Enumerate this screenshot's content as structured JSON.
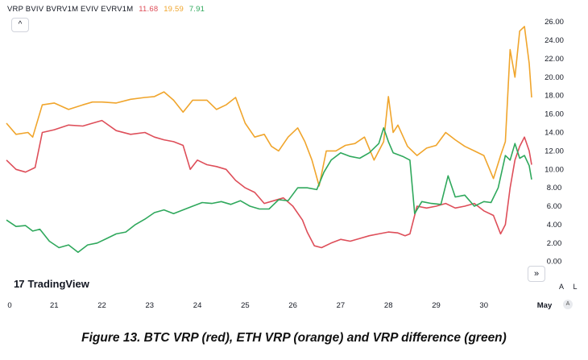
{
  "legend": {
    "labels": "VRP BVIV BVRV1M EVIV EVRV1M",
    "btc_value": "11.68",
    "eth_value": "19.59",
    "diff_value": "7.91"
  },
  "collapse_glyph": "^",
  "logo": {
    "mark": "17",
    "text": "TradingView"
  },
  "nav_glyph": "»",
  "scale_buttons": {
    "auto": "A",
    "log": "L"
  },
  "auto_badge": "A",
  "caption": "Figure 13. BTC VRP (red), ETH VRP (orange) and VRP difference (green)",
  "chart_data": {
    "type": "line",
    "title": "",
    "xlabel": "",
    "ylabel": "",
    "x_ticks": [
      "0",
      "21",
      "22",
      "23",
      "24",
      "25",
      "26",
      "27",
      "28",
      "29",
      "30",
      "May"
    ],
    "y_ticks": [
      "0.00",
      "2.00",
      "4.00",
      "6.00",
      "8.00",
      "10.00",
      "12.00",
      "14.00",
      "16.00",
      "18.00",
      "20.00",
      "22.00",
      "24.00",
      "26.00"
    ],
    "xlim": [
      20,
      31
    ],
    "ylim": [
      -0.9,
      27.5
    ],
    "grid": false,
    "series": [
      {
        "key": "eth",
        "color": "#f0a52c",
        "x": [
          20.0,
          20.2,
          20.45,
          20.55,
          20.75,
          21.0,
          21.3,
          21.6,
          21.8,
          22.0,
          22.3,
          22.6,
          22.9,
          23.1,
          23.3,
          23.5,
          23.7,
          23.9,
          24.2,
          24.4,
          24.6,
          24.8,
          25.0,
          25.2,
          25.4,
          25.55,
          25.7,
          25.9,
          26.1,
          26.25,
          26.4,
          26.55,
          26.7,
          26.9,
          27.1,
          27.3,
          27.5,
          27.7,
          27.9,
          28.0,
          28.1,
          28.2,
          28.4,
          28.6,
          28.8,
          29.0,
          29.2,
          29.4,
          29.6,
          29.8,
          30.0,
          30.2,
          30.35,
          30.45,
          30.55,
          30.65,
          30.75,
          30.85,
          30.95,
          31.0
        ],
        "y": [
          15.0,
          13.8,
          14.0,
          13.5,
          17.0,
          17.2,
          16.5,
          17.0,
          17.3,
          17.3,
          17.2,
          17.6,
          17.8,
          17.9,
          18.4,
          17.5,
          16.2,
          17.5,
          17.5,
          16.5,
          17.0,
          17.8,
          15.0,
          13.5,
          13.8,
          12.5,
          12.0,
          13.5,
          14.5,
          13.0,
          11.0,
          8.2,
          12.0,
          12.0,
          12.6,
          12.8,
          13.5,
          11.0,
          13.0,
          17.9,
          14.0,
          14.8,
          12.5,
          11.5,
          12.3,
          12.6,
          14.0,
          13.2,
          12.5,
          12.0,
          11.5,
          9.0,
          11.5,
          13.0,
          23.0,
          20.0,
          25.0,
          25.5,
          21.5,
          17.8
        ]
      },
      {
        "key": "btc",
        "color": "#de4e59",
        "x": [
          20.0,
          20.2,
          20.4,
          20.6,
          20.75,
          21.0,
          21.3,
          21.6,
          21.8,
          22.0,
          22.3,
          22.6,
          22.9,
          23.1,
          23.3,
          23.5,
          23.7,
          23.85,
          24.0,
          24.2,
          24.4,
          24.6,
          24.8,
          25.0,
          25.2,
          25.4,
          25.6,
          25.8,
          26.0,
          26.2,
          26.3,
          26.45,
          26.6,
          26.8,
          27.0,
          27.2,
          27.4,
          27.6,
          27.8,
          28.0,
          28.2,
          28.35,
          28.45,
          28.6,
          28.8,
          29.0,
          29.2,
          29.4,
          29.6,
          29.8,
          30.0,
          30.2,
          30.35,
          30.45,
          30.55,
          30.65,
          30.75,
          30.85,
          30.95,
          31.0
        ],
        "y": [
          11.0,
          10.0,
          9.7,
          10.2,
          14.0,
          14.3,
          14.8,
          14.7,
          15.0,
          15.3,
          14.2,
          13.8,
          14.0,
          13.5,
          13.2,
          13.0,
          12.6,
          10.0,
          11.0,
          10.5,
          10.3,
          10.0,
          8.8,
          8.0,
          7.5,
          6.3,
          6.6,
          6.9,
          6.0,
          4.5,
          3.2,
          1.7,
          1.5,
          2.0,
          2.4,
          2.2,
          2.5,
          2.8,
          3.0,
          3.2,
          3.1,
          2.8,
          3.0,
          6.0,
          5.8,
          6.0,
          6.3,
          5.8,
          6.0,
          6.3,
          5.5,
          5.0,
          3.0,
          4.0,
          8.0,
          11.0,
          12.5,
          13.5,
          12.0,
          10.5
        ]
      },
      {
        "key": "diff",
        "color": "#2fa85c",
        "x": [
          20.0,
          20.2,
          20.4,
          20.55,
          20.7,
          20.9,
          21.1,
          21.3,
          21.5,
          21.7,
          21.9,
          22.1,
          22.3,
          22.5,
          22.7,
          22.9,
          23.1,
          23.3,
          23.5,
          23.7,
          23.9,
          24.1,
          24.3,
          24.5,
          24.7,
          24.9,
          25.1,
          25.3,
          25.5,
          25.7,
          25.9,
          26.1,
          26.3,
          26.5,
          26.65,
          26.8,
          27.0,
          27.2,
          27.4,
          27.6,
          27.8,
          27.9,
          28.0,
          28.1,
          28.3,
          28.45,
          28.55,
          28.7,
          28.9,
          29.1,
          29.25,
          29.4,
          29.6,
          29.8,
          30.0,
          30.15,
          30.3,
          30.45,
          30.55,
          30.65,
          30.75,
          30.85,
          30.95,
          31.0
        ],
        "y": [
          4.5,
          3.8,
          3.9,
          3.3,
          3.5,
          2.2,
          1.5,
          1.8,
          1.0,
          1.8,
          2.0,
          2.5,
          3.0,
          3.2,
          4.0,
          4.6,
          5.3,
          5.6,
          5.2,
          5.6,
          6.0,
          6.4,
          6.3,
          6.5,
          6.2,
          6.6,
          6.0,
          5.7,
          5.7,
          6.7,
          6.6,
          8.0,
          8.0,
          7.8,
          9.7,
          11.0,
          11.8,
          11.4,
          11.2,
          11.8,
          12.8,
          14.5,
          13.0,
          11.8,
          11.4,
          11.0,
          5.2,
          6.5,
          6.3,
          6.2,
          9.3,
          7.0,
          7.2,
          6.0,
          6.5,
          6.4,
          8.0,
          11.5,
          11.0,
          12.8,
          11.2,
          11.5,
          10.4,
          8.9
        ]
      }
    ]
  }
}
